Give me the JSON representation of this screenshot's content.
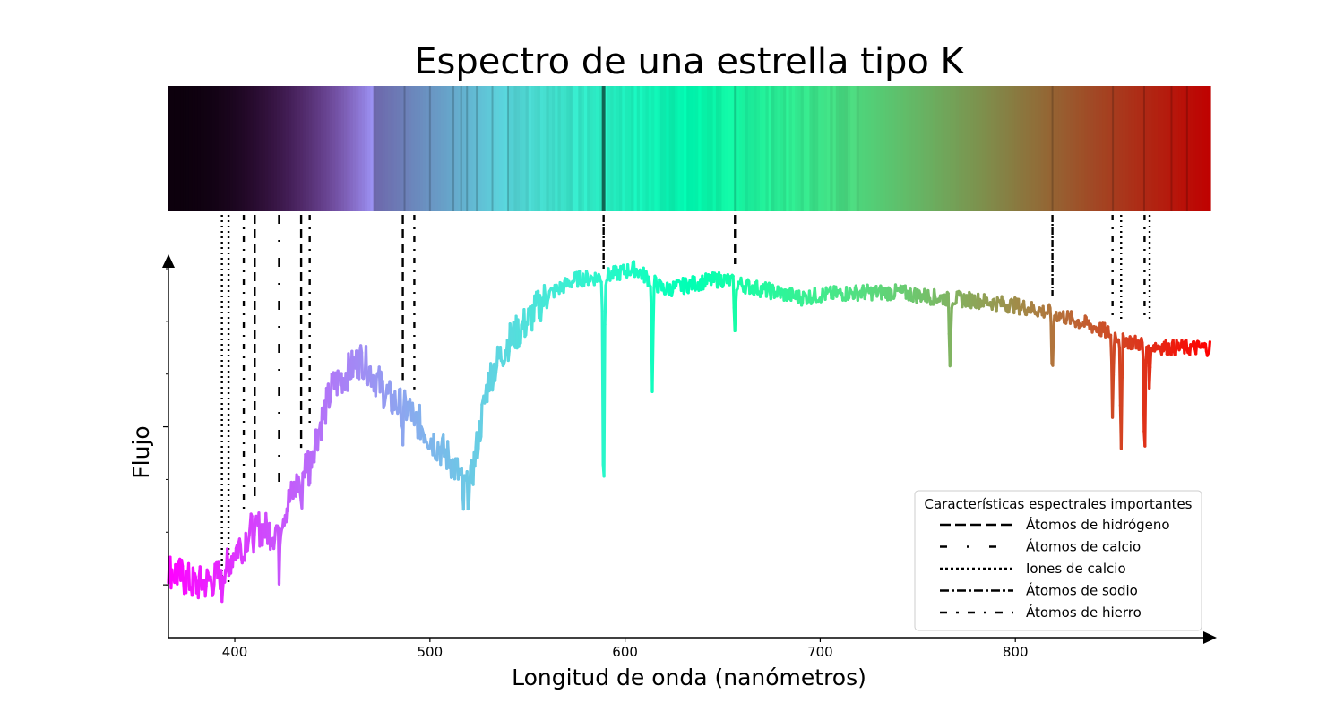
{
  "chart_data": {
    "type": "line",
    "title": "Espectro de una estrella tipo K",
    "xlabel": "Longitud de onda (nanómetros)",
    "ylabel": "Flujo",
    "xlim": [
      366,
      900
    ],
    "ylim": [
      0,
      1.4
    ],
    "xticks": [
      400,
      500,
      600,
      700,
      800
    ],
    "y_ticks_labeled": false,
    "grid": false,
    "colormap": "rainbow",
    "continuum_points": [
      [
        366,
        0.26
      ],
      [
        380,
        0.2
      ],
      [
        390,
        0.22
      ],
      [
        400,
        0.33
      ],
      [
        410,
        0.42
      ],
      [
        420,
        0.4
      ],
      [
        430,
        0.55
      ],
      [
        440,
        0.72
      ],
      [
        450,
        0.95
      ],
      [
        465,
        1.06
      ],
      [
        480,
        0.9
      ],
      [
        490,
        0.86
      ],
      [
        500,
        0.76
      ],
      [
        510,
        0.68
      ],
      [
        520,
        0.55
      ],
      [
        530,
        0.98
      ],
      [
        540,
        1.12
      ],
      [
        550,
        1.2
      ],
      [
        560,
        1.3
      ],
      [
        575,
        1.36
      ],
      [
        590,
        1.37
      ],
      [
        605,
        1.4
      ],
      [
        620,
        1.32
      ],
      [
        640,
        1.35
      ],
      [
        650,
        1.36
      ],
      [
        665,
        1.33
      ],
      [
        690,
        1.29
      ],
      [
        700,
        1.3
      ],
      [
        720,
        1.31
      ],
      [
        740,
        1.31
      ],
      [
        760,
        1.29
      ],
      [
        780,
        1.28
      ],
      [
        800,
        1.26
      ],
      [
        820,
        1.23
      ],
      [
        840,
        1.18
      ],
      [
        860,
        1.12
      ],
      [
        880,
        1.1
      ],
      [
        900,
        1.1
      ]
    ],
    "absorption_dips": [
      [
        393.4,
        0.1
      ],
      [
        396.8,
        0.1
      ],
      [
        404.5,
        0.08
      ],
      [
        410.2,
        0.08
      ],
      [
        422.7,
        0.18
      ],
      [
        434.0,
        0.15
      ],
      [
        438.4,
        0.1
      ],
      [
        486.1,
        0.12
      ],
      [
        492.0,
        0.08
      ],
      [
        517.0,
        0.1
      ],
      [
        589.0,
        0.9
      ],
      [
        614.0,
        0.4
      ],
      [
        656.3,
        0.2
      ],
      [
        766.5,
        0.26
      ],
      [
        819.0,
        0.25
      ],
      [
        849.8,
        0.3
      ],
      [
        854.2,
        0.45
      ],
      [
        866.2,
        0.45
      ],
      [
        868.8,
        0.15
      ]
    ],
    "bar_dark_lines": [
      589.0,
      540.0,
      532.0,
      524.0,
      519.0,
      516.0,
      512.0,
      500.0,
      487.0,
      656.3,
      819.0,
      850.0,
      866.0,
      880.0,
      888.0
    ],
    "legend": {
      "title": "Características espectrales importantes",
      "position": "lower-right",
      "entries": [
        {
          "label": "Átomos de hidrógeno",
          "style": "dashed"
        },
        {
          "label": "Átomos de calcio",
          "style": "dash-dot-sparse"
        },
        {
          "label": "Iones de calcio",
          "style": "dotted"
        },
        {
          "label": "Átomos de sodio",
          "style": "dash-dot-dense"
        },
        {
          "label": "Átomos de hierro",
          "style": "dash-dot-wide"
        }
      ]
    },
    "feature_lines": [
      {
        "element": "Iones de calcio",
        "wavelengths": [
          393.4,
          396.8
        ]
      },
      {
        "element": "Átomos de hierro",
        "wavelengths": [
          404.6
        ]
      },
      {
        "element": "Átomos de hidrógeno",
        "wavelengths": [
          410.2,
          434.0,
          486.1,
          656.3
        ]
      },
      {
        "element": "Átomos de calcio",
        "wavelengths": [
          422.7
        ]
      },
      {
        "element": "Átomos de hierro",
        "wavelengths": [
          438.4,
          492.0
        ]
      },
      {
        "element": "Átomos de sodio",
        "wavelengths": [
          589.0,
          819.0
        ]
      },
      {
        "element": "Átomos de hierro",
        "wavelengths": [
          849.8,
          866.2
        ]
      },
      {
        "element": "Iones de calcio",
        "wavelengths": [
          854.2,
          868.8
        ]
      }
    ]
  }
}
